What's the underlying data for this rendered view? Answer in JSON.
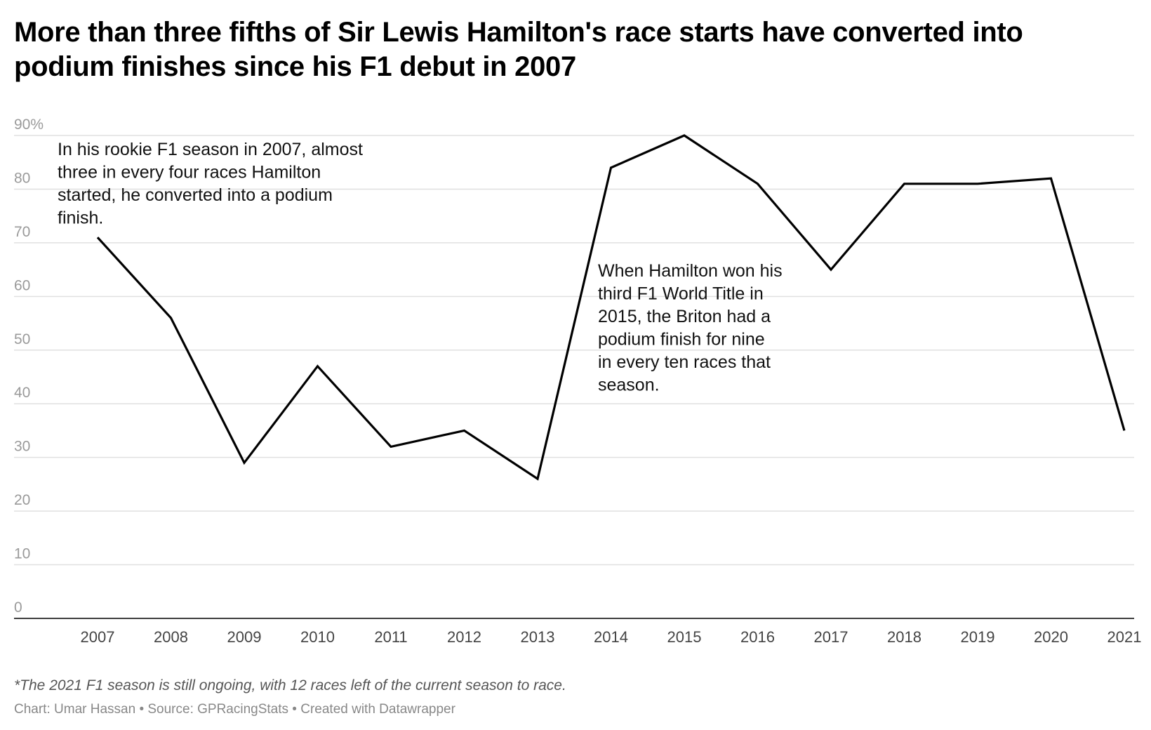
{
  "title": "More than three fifths of Sir Lewis Hamilton's race starts have converted into podium finishes since his F1 debut in 2007",
  "footnote": "*The 2021 F1 season is still ongoing, with 12 races left of the current season to race.",
  "credits": "Chart: Umar Hassan • Source: GPRacingStats • Created with Datawrapper",
  "chart_data": {
    "type": "line",
    "x": [
      "2007",
      "2008",
      "2009",
      "2010",
      "2011",
      "2012",
      "2013",
      "2014",
      "2015",
      "2016",
      "2017",
      "2018",
      "2019",
      "2020",
      "2021"
    ],
    "series": [
      {
        "values": [
          71,
          56,
          29,
          47,
          32,
          35,
          26,
          84,
          90,
          81,
          65,
          81,
          81,
          82,
          35
        ]
      }
    ],
    "ylim": [
      0,
      90
    ],
    "yticks": [
      0,
      10,
      20,
      30,
      40,
      50,
      60,
      70,
      80,
      90
    ],
    "ytick_labels": [
      "0",
      "10",
      "20",
      "30",
      "40",
      "50",
      "60",
      "70",
      "80",
      "90%"
    ],
    "grid": true,
    "line_color": "#000000",
    "annotations": [
      {
        "lines": [
          "In his rookie F1 season in 2007, almost",
          "three in every four races Hamilton",
          "started, he converted into a podium",
          "finish."
        ]
      },
      {
        "lines": [
          "When Hamilton won his",
          "third F1 World Title in",
          "2015, the Briton had a",
          "podium finish for nine",
          "in every ten races that",
          "season."
        ]
      }
    ]
  }
}
